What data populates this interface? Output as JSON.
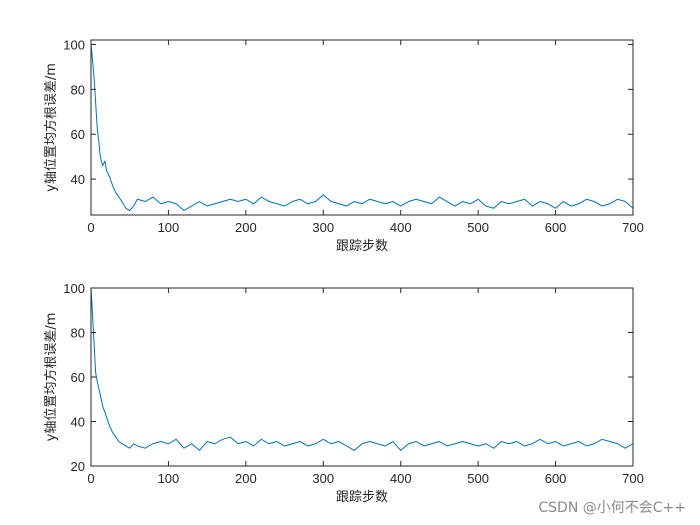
{
  "chart_data": [
    {
      "type": "line",
      "xlabel": "跟踪步数",
      "ylabel": "y轴位置均方根误差/m",
      "xlim": [
        0,
        700
      ],
      "ylim": [
        24,
        102
      ],
      "xticks": [
        "0",
        "100",
        "200",
        "300",
        "400",
        "500",
        "600",
        "700"
      ],
      "yticks": [
        "40",
        "60",
        "80",
        "100"
      ],
      "series": [
        {
          "color": "#0072BD",
          "x": [
            0,
            2,
            4,
            6,
            8,
            10,
            12,
            15,
            18,
            20,
            24,
            28,
            32,
            36,
            40,
            45,
            50,
            55,
            60,
            70,
            80,
            90,
            100,
            110,
            120,
            130,
            140,
            150,
            160,
            170,
            180,
            190,
            200,
            210,
            220,
            230,
            240,
            250,
            260,
            270,
            280,
            290,
            300,
            310,
            320,
            330,
            340,
            350,
            360,
            370,
            380,
            390,
            400,
            410,
            420,
            430,
            440,
            450,
            460,
            470,
            480,
            490,
            500,
            510,
            520,
            530,
            540,
            550,
            560,
            570,
            580,
            590,
            600,
            610,
            620,
            630,
            640,
            650,
            660,
            670,
            680,
            690,
            700
          ],
          "values": [
            100,
            93,
            85,
            74,
            63,
            57,
            50,
            46,
            48,
            44,
            41,
            37,
            34,
            32,
            30,
            27,
            26,
            28,
            31,
            30,
            32,
            29,
            30,
            29,
            26,
            28,
            30,
            28,
            29,
            30,
            31,
            30,
            31,
            29,
            32,
            30,
            29,
            28,
            30,
            31,
            29,
            30,
            33,
            30,
            29,
            28,
            30,
            29,
            31,
            30,
            29,
            30,
            28,
            30,
            31,
            30,
            29,
            32,
            30,
            28,
            30,
            29,
            31,
            28,
            27,
            30,
            29,
            30,
            31,
            28,
            30,
            29,
            27,
            30,
            28,
            29,
            31,
            30,
            28,
            29,
            31,
            30,
            27
          ]
        }
      ]
    },
    {
      "type": "line",
      "xlabel": "跟踪步数",
      "ylabel": "y轴位置均方根误差/m",
      "xlim": [
        0,
        700
      ],
      "ylim": [
        20,
        100
      ],
      "xticks": [
        "0",
        "100",
        "200",
        "300",
        "400",
        "500",
        "600",
        "700"
      ],
      "yticks": [
        "20",
        "40",
        "60",
        "80",
        "100"
      ],
      "series": [
        {
          "color": "#0072BD",
          "x": [
            0,
            2,
            4,
            6,
            8,
            10,
            12,
            15,
            18,
            20,
            24,
            28,
            32,
            36,
            40,
            45,
            50,
            55,
            60,
            70,
            80,
            90,
            100,
            110,
            120,
            130,
            140,
            150,
            160,
            170,
            180,
            190,
            200,
            210,
            220,
            230,
            240,
            250,
            260,
            270,
            280,
            290,
            300,
            310,
            320,
            330,
            340,
            350,
            360,
            370,
            380,
            390,
            400,
            410,
            420,
            430,
            440,
            450,
            460,
            470,
            480,
            490,
            500,
            510,
            520,
            530,
            540,
            550,
            560,
            570,
            580,
            590,
            600,
            610,
            620,
            630,
            640,
            650,
            660,
            670,
            680,
            690,
            700
          ],
          "values": [
            100,
            88,
            75,
            62,
            58,
            55,
            52,
            47,
            44,
            42,
            38,
            35,
            33,
            31,
            30,
            29,
            28,
            30,
            29,
            28,
            30,
            31,
            30,
            32,
            28,
            30,
            27,
            31,
            30,
            32,
            33,
            30,
            31,
            29,
            32,
            30,
            31,
            29,
            30,
            31,
            29,
            30,
            32,
            30,
            31,
            29,
            27,
            30,
            31,
            30,
            29,
            31,
            27,
            30,
            31,
            29,
            30,
            31,
            29,
            30,
            31,
            30,
            29,
            30,
            28,
            31,
            30,
            31,
            29,
            30,
            32,
            30,
            31,
            29,
            30,
            31,
            29,
            30,
            32,
            31,
            30,
            28,
            30
          ]
        }
      ]
    }
  ],
  "watermark": "CSDN @小何不会C++"
}
